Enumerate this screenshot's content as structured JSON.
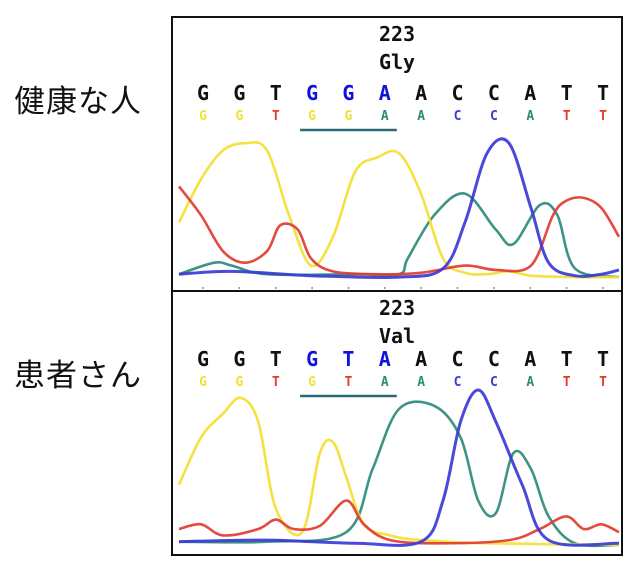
{
  "rows": [
    {
      "label": "健康な人",
      "codon_number": "223",
      "amino_acid": "Gly",
      "bases": [
        {
          "b": "G",
          "hl": false
        },
        {
          "b": "G",
          "hl": false
        },
        {
          "b": "T",
          "hl": false
        },
        {
          "b": "G",
          "hl": true
        },
        {
          "b": "G",
          "hl": true
        },
        {
          "b": "A",
          "hl": true
        },
        {
          "b": "A",
          "hl": false
        },
        {
          "b": "C",
          "hl": false
        },
        {
          "b": "C",
          "hl": false
        },
        {
          "b": "A",
          "hl": false
        },
        {
          "b": "T",
          "hl": false
        },
        {
          "b": "T",
          "hl": false
        }
      ],
      "called": [
        "G",
        "G",
        "T",
        "G",
        "G",
        "A",
        "A",
        "C",
        "C",
        "A",
        "T",
        "T"
      ],
      "traces": {
        "yellow": [
          [
            0,
            60
          ],
          [
            5,
            30
          ],
          [
            10,
            10
          ],
          [
            15,
            5
          ],
          [
            20,
            10
          ],
          [
            25,
            55
          ],
          [
            30,
            90
          ],
          [
            35,
            70
          ],
          [
            40,
            25
          ],
          [
            45,
            15
          ],
          [
            50,
            12
          ],
          [
            55,
            40
          ],
          [
            60,
            85
          ],
          [
            65,
            95
          ],
          [
            70,
            96
          ],
          [
            75,
            94
          ],
          [
            80,
            97
          ],
          [
            90,
            98
          ],
          [
            100,
            98
          ]
        ],
        "red": [
          [
            0,
            35
          ],
          [
            5,
            55
          ],
          [
            10,
            80
          ],
          [
            15,
            88
          ],
          [
            20,
            80
          ],
          [
            23,
            62
          ],
          [
            27,
            65
          ],
          [
            30,
            85
          ],
          [
            35,
            94
          ],
          [
            45,
            96
          ],
          [
            55,
            95
          ],
          [
            65,
            90
          ],
          [
            72,
            93
          ],
          [
            80,
            90
          ],
          [
            85,
            55
          ],
          [
            88,
            45
          ],
          [
            92,
            43
          ],
          [
            96,
            50
          ],
          [
            100,
            70
          ]
        ],
        "teal": [
          [
            0,
            96
          ],
          [
            8,
            88
          ],
          [
            12,
            90
          ],
          [
            20,
            96
          ],
          [
            40,
            96
          ],
          [
            50,
            96
          ],
          [
            52,
            85
          ],
          [
            58,
            55
          ],
          [
            65,
            40
          ],
          [
            72,
            65
          ],
          [
            76,
            75
          ],
          [
            82,
            48
          ],
          [
            86,
            55
          ],
          [
            90,
            92
          ],
          [
            100,
            98
          ]
        ],
        "blue": [
          [
            0,
            96
          ],
          [
            12,
            94
          ],
          [
            30,
            97
          ],
          [
            50,
            98
          ],
          [
            60,
            92
          ],
          [
            65,
            60
          ],
          [
            70,
            12
          ],
          [
            75,
            5
          ],
          [
            80,
            50
          ],
          [
            84,
            88
          ],
          [
            90,
            97
          ],
          [
            96,
            96
          ],
          [
            100,
            93
          ]
        ]
      }
    },
    {
      "label": "患者さん",
      "codon_number": "223",
      "amino_acid": "Val",
      "bases": [
        {
          "b": "G",
          "hl": false
        },
        {
          "b": "G",
          "hl": false
        },
        {
          "b": "T",
          "hl": false
        },
        {
          "b": "G",
          "hl": true
        },
        {
          "b": "T",
          "hl": true
        },
        {
          "b": "A",
          "hl": true
        },
        {
          "b": "A",
          "hl": false
        },
        {
          "b": "C",
          "hl": false
        },
        {
          "b": "C",
          "hl": false
        },
        {
          "b": "A",
          "hl": false
        },
        {
          "b": "T",
          "hl": false
        },
        {
          "b": "T",
          "hl": false
        }
      ],
      "called": [
        "G",
        "G",
        "T",
        "G",
        "T",
        "A",
        "A",
        "C",
        "C",
        "A",
        "T",
        "T"
      ],
      "traces": {
        "yellow": [
          [
            0,
            60
          ],
          [
            5,
            30
          ],
          [
            10,
            15
          ],
          [
            14,
            5
          ],
          [
            18,
            20
          ],
          [
            22,
            75
          ],
          [
            28,
            90
          ],
          [
            32,
            40
          ],
          [
            35,
            33
          ],
          [
            38,
            55
          ],
          [
            42,
            85
          ],
          [
            48,
            92
          ],
          [
            55,
            95
          ],
          [
            70,
            97
          ],
          [
            100,
            98
          ]
        ],
        "red": [
          [
            0,
            88
          ],
          [
            5,
            85
          ],
          [
            10,
            92
          ],
          [
            18,
            88
          ],
          [
            22,
            82
          ],
          [
            26,
            88
          ],
          [
            32,
            86
          ],
          [
            38,
            70
          ],
          [
            42,
            85
          ],
          [
            48,
            95
          ],
          [
            60,
            97
          ],
          [
            75,
            95
          ],
          [
            82,
            88
          ],
          [
            88,
            80
          ],
          [
            92,
            88
          ],
          [
            96,
            85
          ],
          [
            100,
            90
          ]
        ],
        "teal": [
          [
            0,
            96
          ],
          [
            20,
            96
          ],
          [
            38,
            90
          ],
          [
            44,
            50
          ],
          [
            50,
            12
          ],
          [
            58,
            10
          ],
          [
            64,
            30
          ],
          [
            68,
            70
          ],
          [
            72,
            78
          ],
          [
            76,
            40
          ],
          [
            80,
            50
          ],
          [
            84,
            80
          ],
          [
            90,
            97
          ],
          [
            100,
            98
          ]
        ],
        "blue": [
          [
            0,
            96
          ],
          [
            20,
            95
          ],
          [
            40,
            97
          ],
          [
            55,
            96
          ],
          [
            60,
            70
          ],
          [
            64,
            20
          ],
          [
            68,
            0
          ],
          [
            72,
            20
          ],
          [
            78,
            60
          ],
          [
            84,
            95
          ],
          [
            100,
            97
          ]
        ]
      }
    }
  ],
  "colors": {
    "G": "#f2e030",
    "A": "#2e8b7a",
    "T": "#e23b2e",
    "C": "#3a3bd6",
    "highlight": "#1111dd",
    "underline": "#2b6a78",
    "text": "#111111"
  }
}
